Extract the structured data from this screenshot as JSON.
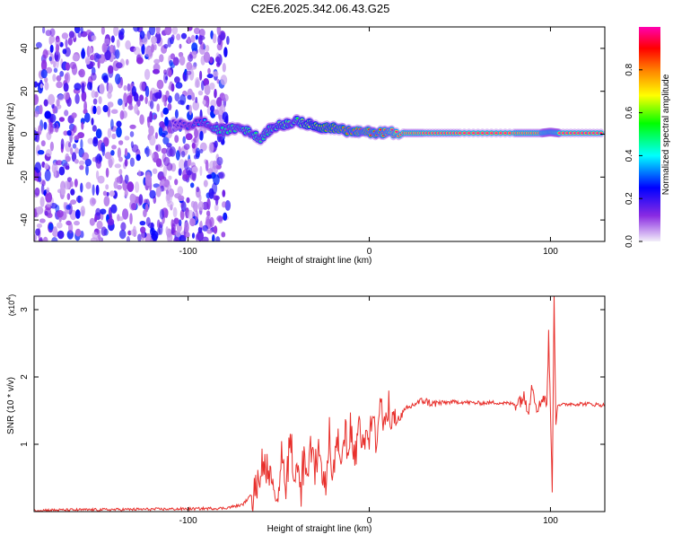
{
  "figure": {
    "title": "C2E6.2025.342.06.43.G25"
  },
  "chart_data": [
    {
      "type": "heatmap",
      "title": "C2E6.2025.342.06.43.G25",
      "xlabel": "Height of straight line (km)",
      "ylabel": "Frequency (Hz)",
      "xlim": [
        -185,
        130
      ],
      "ylim": [
        -50,
        50
      ],
      "xticks": [
        -100,
        0,
        100
      ],
      "yticks": [
        -40,
        -20,
        0,
        20,
        40
      ],
      "xtick_labels": [
        "-100",
        "0",
        "100"
      ],
      "ytick_labels": [
        "-40",
        "-20",
        "0",
        "20",
        "40"
      ],
      "colorbar": {
        "label": "Normalized spectral amplitude",
        "range": [
          0,
          1
        ],
        "ticks": [
          0.0,
          0.2,
          0.4,
          0.6,
          0.8
        ],
        "tick_labels": [
          "0.0",
          "0.2",
          "0.4",
          "0.6",
          "0.8"
        ],
        "colormap": [
          "#f0ecf8",
          "#8a2be2",
          "#0000ff",
          "#00ffff",
          "#00ff00",
          "#ffff00",
          "#ff7f00",
          "#ff0000",
          "#ff00b0"
        ]
      },
      "noise_region_x": [
        -185,
        -78
      ],
      "ridge": {
        "x": [
          -108,
          -100,
          -92,
          -85,
          -78,
          -72,
          -66,
          -60,
          -55,
          -50,
          -45,
          -40,
          -35,
          -30,
          -25,
          -20,
          -15,
          -10,
          -5,
          0,
          5,
          10,
          15,
          30,
          50,
          80,
          95,
          100,
          105,
          130
        ],
        "y": [
          5,
          4,
          6,
          2,
          2,
          3,
          1,
          -2,
          2,
          4,
          5,
          6,
          5,
          4,
          3,
          3,
          2,
          1,
          1,
          1,
          0.5,
          1,
          0.5,
          0.5,
          0.5,
          0.5,
          0.5,
          1,
          0.5,
          0.5
        ],
        "amplitude": [
          0.2,
          0.3,
          0.35,
          0.45,
          0.5,
          0.5,
          0.55,
          0.5,
          0.5,
          0.6,
          0.6,
          0.55,
          0.65,
          0.7,
          0.8,
          0.8,
          0.85,
          0.85,
          0.9,
          0.9,
          0.9,
          0.95,
          1.0,
          1.0,
          1.0,
          1.0,
          1.0,
          0.95,
          1.0,
          1.0
        ]
      }
    },
    {
      "type": "line",
      "xlabel": "Height of straight line (km)",
      "ylabel": "SNR (10 * v/v)",
      "yscale_label": "(x10",
      "yscale_exp": "4",
      "yscale_close": ")",
      "xlim": [
        -185,
        130
      ],
      "ylim": [
        0,
        3.2
      ],
      "xticks": [
        -100,
        0,
        100
      ],
      "yticks": [
        1,
        2,
        3
      ],
      "xtick_labels": [
        "-100",
        "0",
        "100"
      ],
      "ytick_labels": [
        "1",
        "2",
        "3"
      ],
      "series": [
        {
          "name": "SNR",
          "color": "#e8302c",
          "x": [
            -185,
            -100,
            -80,
            -70,
            -65,
            -60,
            -58,
            -56,
            -54,
            -52,
            -50,
            -48,
            -46,
            -44,
            -42,
            -40,
            -38,
            -36,
            -34,
            -32,
            -30,
            -28,
            -26,
            -24,
            -22,
            -20,
            -18,
            -16,
            -14,
            -12,
            -10,
            -8,
            -6,
            -4,
            -2,
            0,
            2,
            4,
            6,
            8,
            10,
            12,
            15,
            20,
            25,
            30,
            35,
            40,
            50,
            60,
            70,
            80,
            85,
            88,
            90,
            92,
            94,
            96,
            98,
            99,
            100,
            101,
            102,
            103,
            104,
            106,
            110,
            120,
            130
          ],
          "y": [
            0.02,
            0.04,
            0.05,
            0.1,
            0.25,
            0.55,
            0.8,
            0.4,
            0.6,
            0.3,
            0.2,
            0.9,
            0.35,
            1.2,
            0.5,
            0.7,
            0.3,
            0.8,
            0.4,
            1.1,
            0.5,
            0.9,
            0.6,
            0.4,
            1.0,
            0.5,
            1.0,
            0.6,
            1.1,
            0.8,
            1.2,
            0.75,
            1.4,
            1.0,
            1.35,
            1.1,
            1.5,
            0.9,
            1.7,
            1.2,
            1.5,
            1.4,
            1.35,
            1.5,
            1.6,
            1.65,
            1.6,
            1.62,
            1.63,
            1.61,
            1.62,
            1.6,
            1.7,
            1.55,
            1.9,
            1.6,
            1.55,
            1.75,
            1.6,
            2.6,
            1.5,
            0.3,
            3.2,
            1.3,
            1.6,
            1.58,
            1.6,
            1.6,
            1.58
          ]
        }
      ]
    }
  ]
}
